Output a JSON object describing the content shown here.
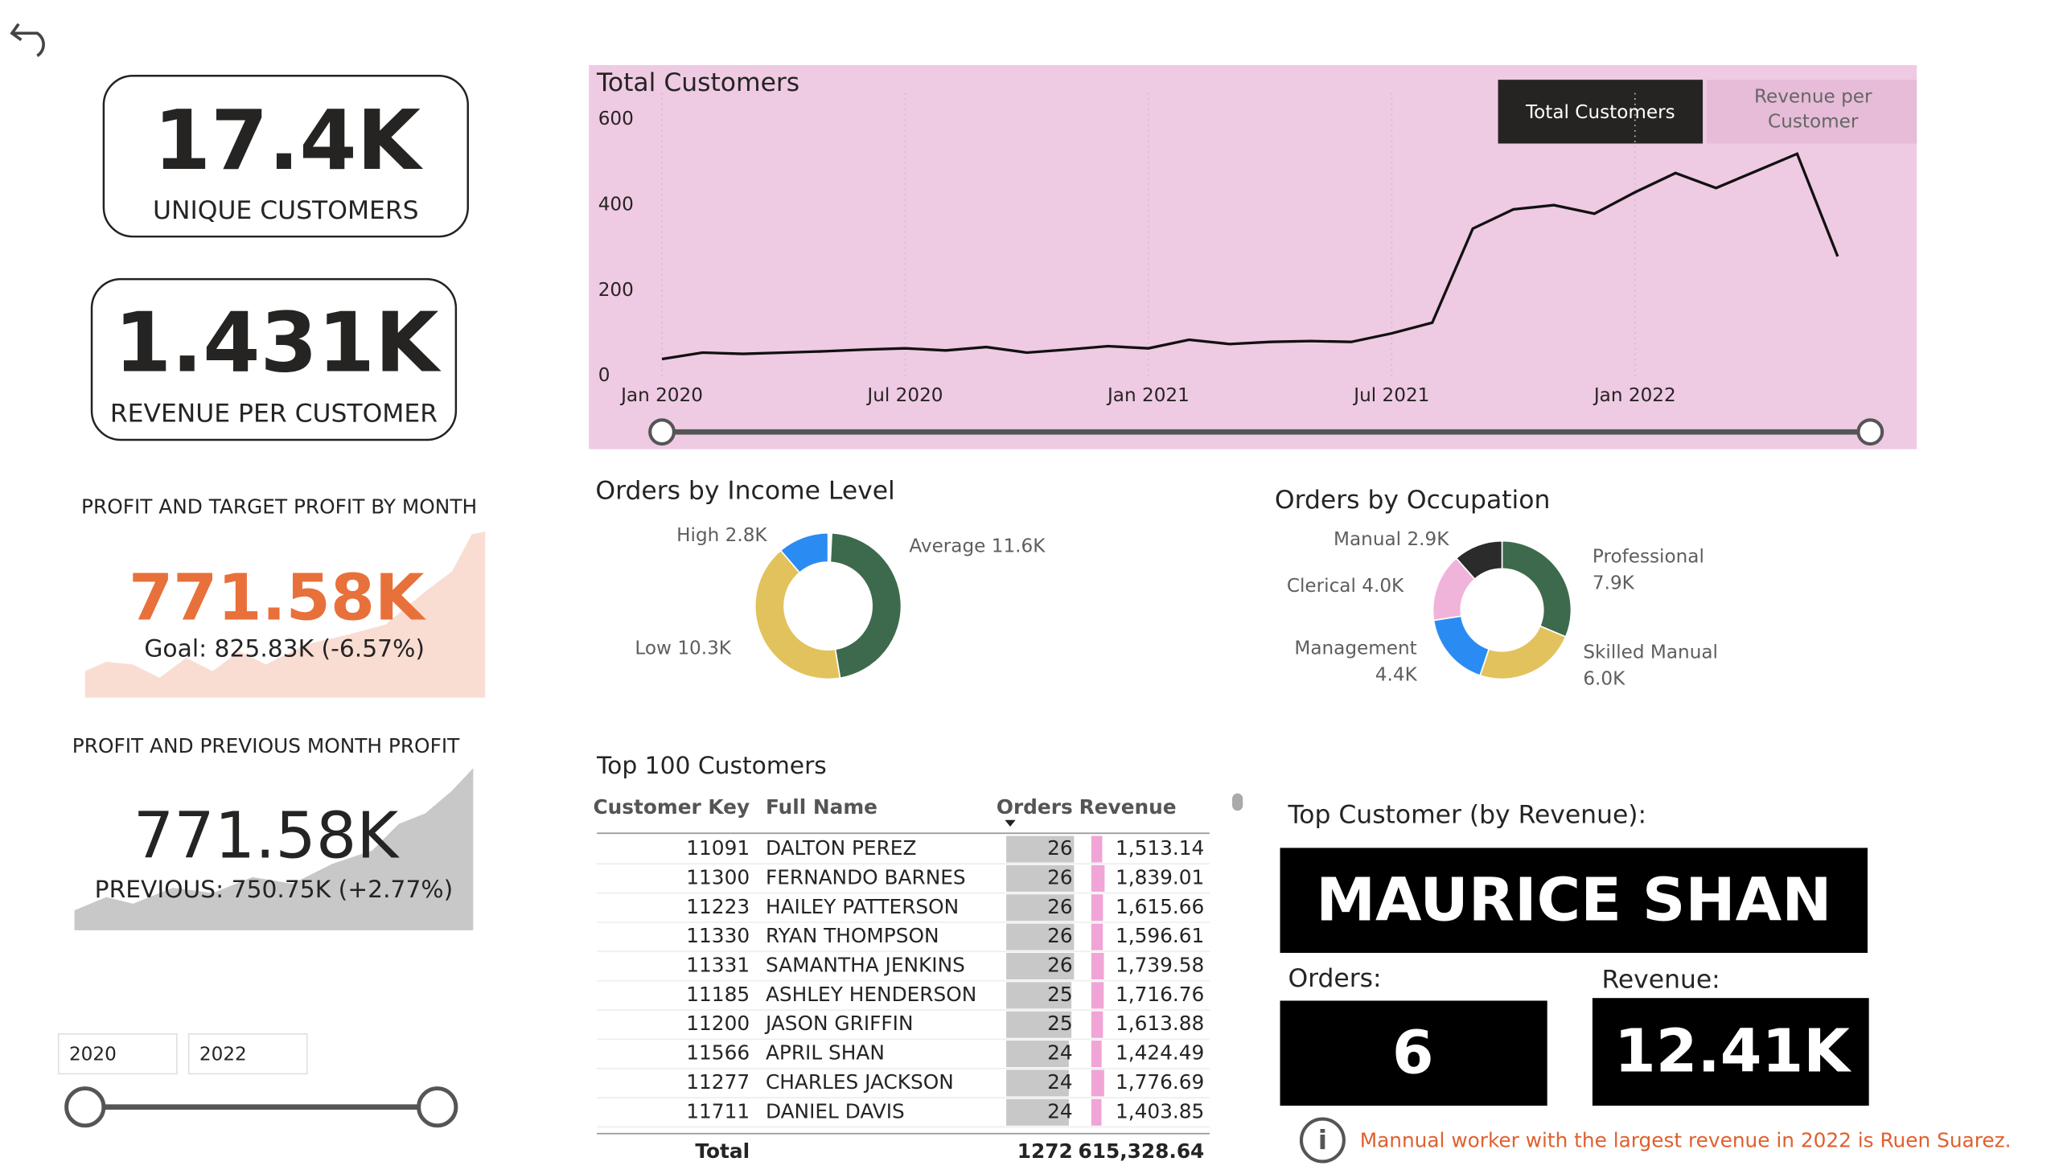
{
  "cards": [
    {
      "value": "17.4K",
      "label": "UNIQUE CUSTOMERS"
    },
    {
      "value": "1.431K",
      "label": "REVENUE PER CUSTOMER"
    }
  ],
  "profit_target": {
    "title": "PROFIT AND TARGET PROFIT BY MONTH",
    "value": "771.58K",
    "goal": "Goal: 825.83K (-6.57%)"
  },
  "profit_previous": {
    "title": "PROFIT AND PREVIOUS MONTH PROFIT",
    "value": "771.58K",
    "previous": "PREVIOUS: 750.75K (+2.77%)"
  },
  "year_slicer": {
    "from": "2020",
    "to": "2022"
  },
  "buttons": [
    "Total Customers",
    "Revenue per Customer"
  ],
  "chart_data": [
    {
      "type": "line",
      "title": "Total Customers",
      "categories": [
        "Jan 2020",
        null,
        null,
        null,
        null,
        null,
        "Jul 2020",
        null,
        null,
        null,
        null,
        null,
        "Jan 2021",
        null,
        null,
        null,
        null,
        null,
        "Jul 2021",
        null,
        null,
        null,
        null,
        null,
        "Jan 2022",
        null,
        null,
        null,
        null,
        null
      ],
      "series": [
        {
          "name": "Total Customers",
          "color": "#111111",
          "values": [
            40,
            55,
            52,
            55,
            58,
            62,
            65,
            60,
            68,
            55,
            62,
            70,
            65,
            85,
            75,
            80,
            82,
            80,
            100,
            125,
            345,
            390,
            400,
            380,
            430,
            475,
            440,
            480,
            520,
            280
          ]
        }
      ],
      "ylim": [
        0,
        600
      ],
      "yticks": [
        0,
        200,
        400,
        600
      ],
      "grid": false
    },
    {
      "type": "donut",
      "title": "Orders by Income Level",
      "categories": [
        "Average",
        "Low",
        "High"
      ],
      "values": [
        11.6,
        10.3,
        2.8
      ],
      "value_labels": [
        "11.6K",
        "10.3K",
        "2.8K"
      ],
      "colors": [
        "#3d6a4c",
        "#e2c25c",
        "#2a8cf2"
      ]
    },
    {
      "type": "donut",
      "title": "Orders by Occupation",
      "categories": [
        "Professional",
        "Skilled Manual",
        "Management",
        "Clerical",
        "Manual"
      ],
      "values": [
        7.9,
        6.0,
        4.4,
        4.0,
        2.9
      ],
      "value_labels": [
        "7.9K",
        "6.0K",
        "4.4K",
        "4.0K",
        "2.9K"
      ],
      "colors": [
        "#3d6a4c",
        "#e2c25c",
        "#2a8cf2",
        "#f0b3da",
        "#2b2b2b"
      ]
    }
  ],
  "table": {
    "title": "Top 100 Customers",
    "columns": [
      "Customer Key",
      "Full Name",
      "Orders",
      "Revenue"
    ],
    "rows": [
      [
        "11091",
        "DALTON PEREZ",
        26,
        "1,513.14"
      ],
      [
        "11300",
        "FERNANDO BARNES",
        26,
        "1,839.01"
      ],
      [
        "11223",
        "HAILEY PATTERSON",
        26,
        "1,615.66"
      ],
      [
        "11330",
        "RYAN THOMPSON",
        26,
        "1,596.61"
      ],
      [
        "11331",
        "SAMANTHA JENKINS",
        26,
        "1,739.58"
      ],
      [
        "11185",
        "ASHLEY HENDERSON",
        25,
        "1,716.76"
      ],
      [
        "11200",
        "JASON GRIFFIN",
        25,
        "1,613.88"
      ],
      [
        "11566",
        "APRIL SHAN",
        24,
        "1,424.49"
      ],
      [
        "11277",
        "CHARLES JACKSON",
        24,
        "1,776.69"
      ],
      [
        "11711",
        "DANIEL DAVIS",
        24,
        "1,403.85"
      ]
    ],
    "revenue": [
      1513.14,
      1839.01,
      1615.66,
      1596.61,
      1739.58,
      1716.76,
      1613.88,
      1424.49,
      1776.69,
      1403.85
    ],
    "total": [
      "Total",
      "1272",
      "615,328.64"
    ]
  },
  "top_customer": {
    "heading": "Top Customer (by Revenue):",
    "name": "MAURICE SHAN",
    "orders_label": "Orders:",
    "orders": "6",
    "revenue_label": "Revenue:",
    "revenue": "12.41K"
  },
  "note": "Mannual worker with the largest revenue in 2022 is Ruen Suarez."
}
